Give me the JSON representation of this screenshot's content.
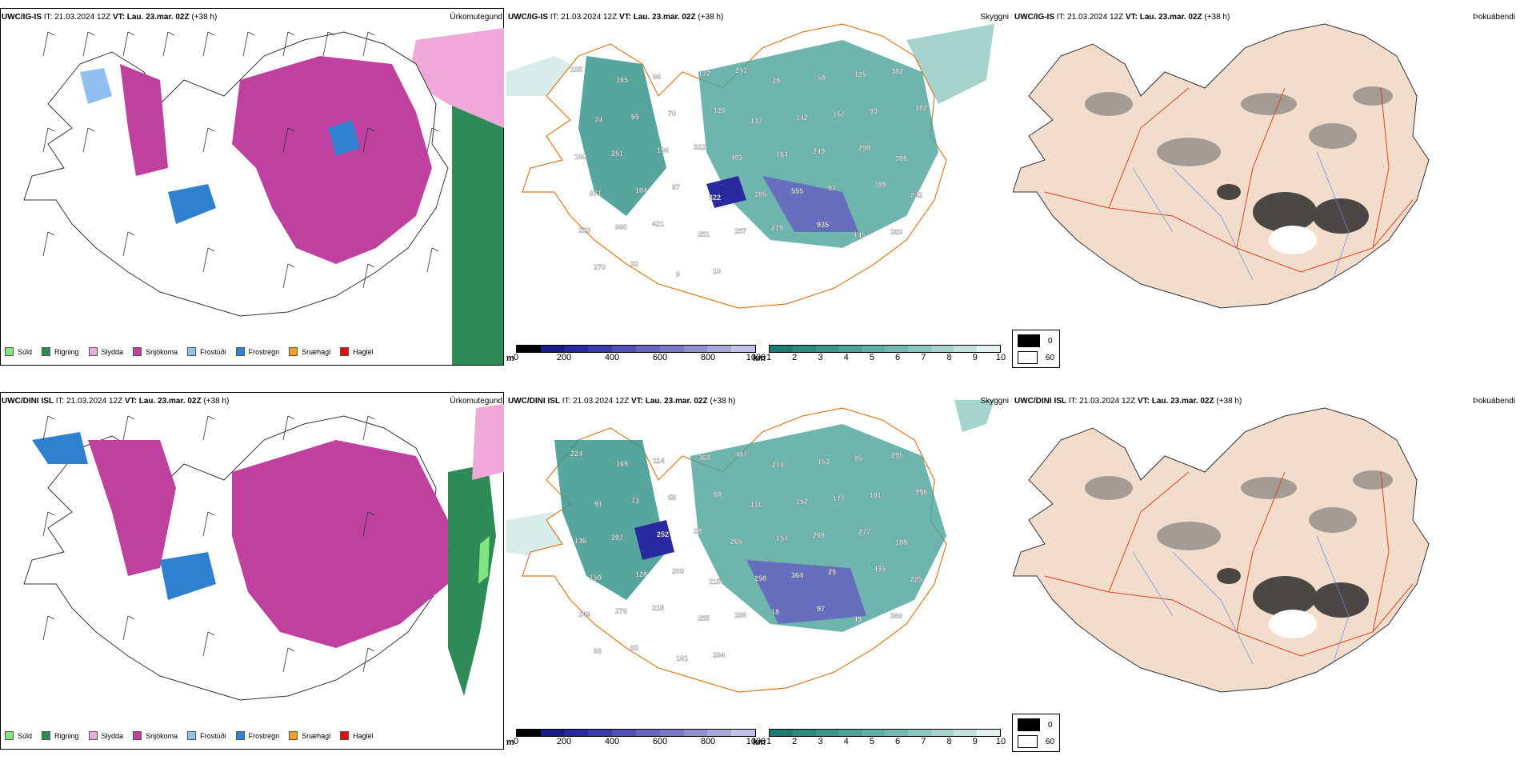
{
  "rows": [
    {
      "model": "UWC/IG-IS",
      "it_label": "IT:",
      "it_value": "21.03.2024 12Z",
      "vt_label": "VT:",
      "vt_value": "Lau. 23.mar. 02Z",
      "lead": "(+38 h)",
      "precip_title": "Úrkomutegund",
      "cloud_title": "Skyggni",
      "fog_title": "Þokuábendi",
      "visibility_labels": [
        "135",
        "165",
        "66",
        "172",
        "241",
        "39",
        "58",
        "125",
        "382",
        "74",
        "65",
        "70",
        "120",
        "137",
        "142",
        "157",
        "93",
        "102",
        "160",
        "251",
        "196",
        "322",
        "403",
        "164",
        "249",
        "290",
        "306",
        "871",
        "104",
        "87",
        "322",
        "285",
        "555",
        "97",
        "709",
        "242",
        "253",
        "960",
        "421",
        "251",
        "257",
        "219",
        "935",
        "145",
        "283",
        "270",
        "32",
        "9",
        "19"
      ]
    },
    {
      "model": "UWC/DINI ISL",
      "it_label": "IT:",
      "it_value": "21.03.2024 12Z",
      "vt_label": "VT:",
      "vt_value": "Lau. 23.mar. 02Z",
      "lead": "(+38 h)",
      "precip_title": "Úrkomutegund",
      "cloud_title": "Skyggni",
      "fog_title": "Þokuábendi",
      "visibility_labels": [
        "224",
        "169",
        "114",
        "368",
        "407",
        "214",
        "153",
        "85",
        "295",
        "91",
        "73",
        "58",
        "68",
        "111",
        "152",
        "177",
        "101",
        "998",
        "136",
        "207",
        "252",
        "29",
        "265",
        "157",
        "268",
        "277",
        "188",
        "159",
        "128",
        "200",
        "215",
        "250",
        "364",
        "25",
        "435",
        "225",
        "149",
        "278",
        "218",
        "255",
        "286",
        "18",
        "97",
        "49",
        "369",
        "68",
        "83",
        "161",
        "294"
      ]
    }
  ],
  "precip_legend": [
    {
      "label": "Súld",
      "color": "#7ee87e"
    },
    {
      "label": "Rigning",
      "color": "#2e8b57"
    },
    {
      "label": "Slydda",
      "color": "#f0a8d8"
    },
    {
      "label": "Snjókoma",
      "color": "#c040a0"
    },
    {
      "label": "Frostúði",
      "color": "#90c0f0"
    },
    {
      "label": "Frostregn",
      "color": "#3080d0"
    },
    {
      "label": "Snæhagl",
      "color": "#f0a020"
    },
    {
      "label": "Haglél",
      "color": "#e01010"
    }
  ],
  "cloud_base_scale": {
    "unit": "m",
    "ticks": [
      "0",
      "200",
      "400",
      "600",
      "800",
      "1000"
    ],
    "colors": [
      "#000000",
      "#1a1a8a",
      "#2a2aa0",
      "#3b3bb0",
      "#5050b8",
      "#6666c0",
      "#7a7ac8",
      "#9090d0",
      "#a8a8dc",
      "#c0c0e8"
    ]
  },
  "visibility_scale": {
    "unit": "km",
    "ticks": [
      "1",
      "2",
      "3",
      "4",
      "5",
      "6",
      "7",
      "8",
      "9",
      "10"
    ],
    "colors": [
      "#1f7a72",
      "#2b8a80",
      "#3a968c",
      "#4aa298",
      "#5daea4",
      "#72bab0",
      "#8ac6be",
      "#a4d4cc",
      "#c2e2dc",
      "#e2f2ee"
    ]
  },
  "fog_scale": {
    "values": [
      "0",
      "60"
    ],
    "colors": [
      "#000000",
      "#ffffff"
    ]
  }
}
